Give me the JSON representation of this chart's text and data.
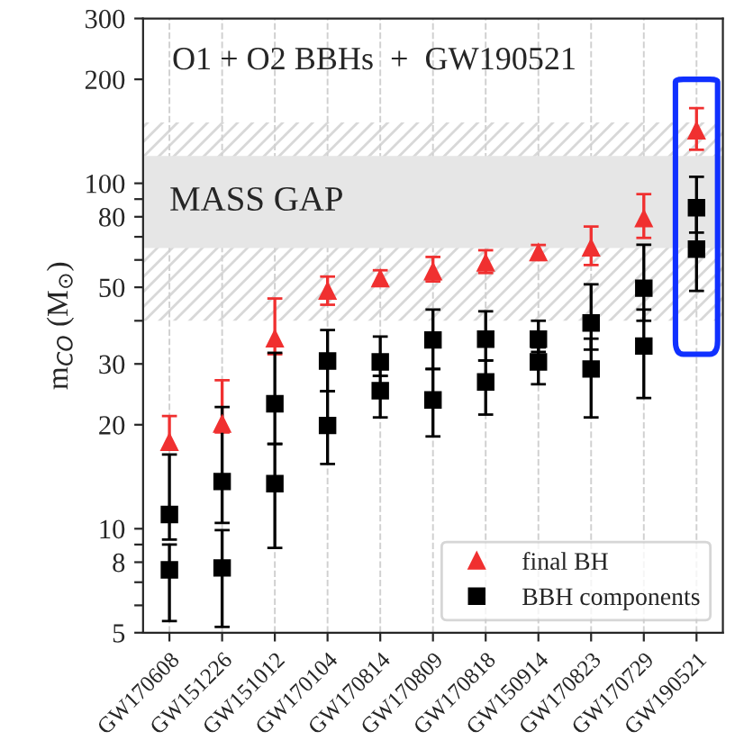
{
  "chart_data": {
    "type": "scatter",
    "title": "O1 + O2 BBHs  +  GW190521",
    "ylabel": "m$_{CO}$ (M$_{⊙}$)",
    "categories": [
      "GW170608",
      "GW151226",
      "GW151012",
      "GW170104",
      "GW170814",
      "GW170809",
      "GW170818",
      "GW150914",
      "GW170823",
      "GW170729",
      "GW190521"
    ],
    "series": [
      {
        "name": "final BH",
        "color": "#f03030",
        "marker": "triangle",
        "values": [
          17.8,
          20.1,
          35.5,
          48.8,
          53,
          55.5,
          58.8,
          63,
          65,
          79,
          142
        ],
        "errors": [
          [
            17,
            21.2
          ],
          [
            19,
            26.9
          ],
          [
            32,
            46.4
          ],
          [
            44.5,
            53.7
          ],
          [
            51,
            56
          ],
          [
            52,
            61.2
          ],
          [
            55,
            64
          ],
          [
            60,
            66.3
          ],
          [
            58,
            75
          ],
          [
            69.5,
            93
          ],
          [
            125,
            165
          ]
        ]
      },
      {
        "name": "BBH components",
        "color": "#000000",
        "marker": "square",
        "values": [
          11,
          13.7,
          23,
          30.6,
          30.4,
          35.2,
          35.4,
          35.4,
          39.4,
          49.7,
          85
        ],
        "errors": [
          [
            9.3,
            16.4
          ],
          [
            10.4,
            22.5
          ],
          [
            17.6,
            32.3
          ],
          [
            25,
            37.6
          ],
          [
            27.7,
            36
          ],
          [
            29,
            43.1
          ],
          [
            30.7,
            42.6
          ],
          [
            32.5,
            40
          ],
          [
            33,
            51
          ],
          [
            40,
            66.4
          ],
          [
            72,
            104.5
          ]
        ]
      },
      {
        "color": "#000000",
        "marker": "square",
        "values": [
          7.6,
          7.7,
          13.5,
          19.9,
          25.1,
          23.6,
          26.6,
          30.4,
          29,
          33.8,
          64.5
        ],
        "errors": [
          [
            5.4,
            9
          ],
          [
            5.2,
            9.9
          ],
          [
            8.8,
            17.6
          ],
          [
            15.4,
            25
          ],
          [
            21,
            27.7
          ],
          [
            18.5,
            29
          ],
          [
            21.4,
            30.7
          ],
          [
            26.2,
            33.5
          ],
          [
            21,
            35.5
          ],
          [
            23.9,
            43.1
          ],
          [
            48.8,
            83
          ]
        ]
      }
    ],
    "bands": [
      {
        "axis": "y",
        "from": 40,
        "to": 150,
        "color": "#d8d8d8"
      },
      {
        "axis": "y",
        "from": 65,
        "to": 120,
        "color": "#e6e6e6",
        "label": "MASS GAP"
      }
    ],
    "log": "y",
    "ylim": [
      5,
      300
    ],
    "yticks": [
      5,
      {
        "value": 6,
        "label": null
      },
      {
        "value": 7,
        "label": null
      },
      8,
      {
        "value": 9,
        "label": null
      },
      10,
      20,
      30,
      {
        "value": 40,
        "label": null
      },
      50,
      {
        "value": 60,
        "label": null
      },
      {
        "value": 70,
        "label": null
      },
      80,
      {
        "value": 90,
        "label": null
      },
      100,
      200,
      300
    ],
    "grid": "x",
    "legend": "lower right"
  }
}
